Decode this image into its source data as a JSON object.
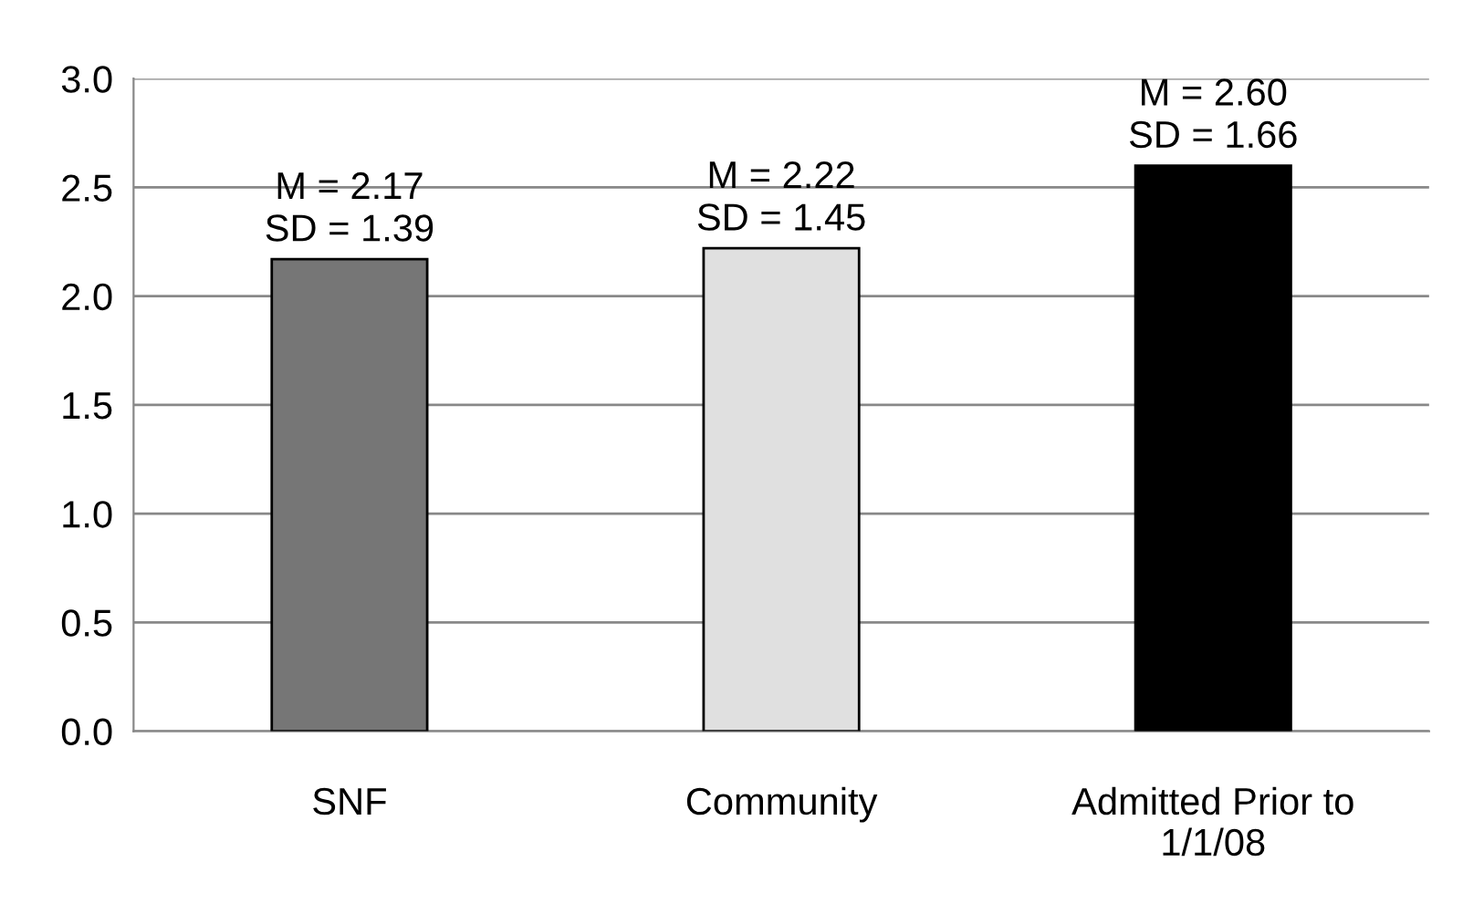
{
  "chart_data": {
    "type": "bar",
    "categories": [
      "SNF",
      "Community",
      "Admitted Prior to\n1/1/08"
    ],
    "values": [
      2.17,
      2.22,
      2.6
    ],
    "colors": [
      "#767676",
      "#e0e0e0",
      "#000000"
    ],
    "value_labels": [
      "M = 2.17\nSD = 1.39",
      "M = 2.22\nSD = 1.45",
      "M = 2.60\nSD = 1.66"
    ],
    "ylim": [
      0,
      3.0
    ],
    "yticks": [
      {
        "value": 0,
        "label": "0.0"
      },
      {
        "value": 0.5,
        "label": "0.5"
      },
      {
        "value": 1.0,
        "label": "1.0"
      },
      {
        "value": 1.5,
        "label": "1.5"
      },
      {
        "value": 2.0,
        "label": "2.0"
      },
      {
        "value": 2.5,
        "label": "2.5"
      },
      {
        "value": 3.0,
        "label": "3.0"
      }
    ],
    "grid": "y",
    "legend": false
  }
}
